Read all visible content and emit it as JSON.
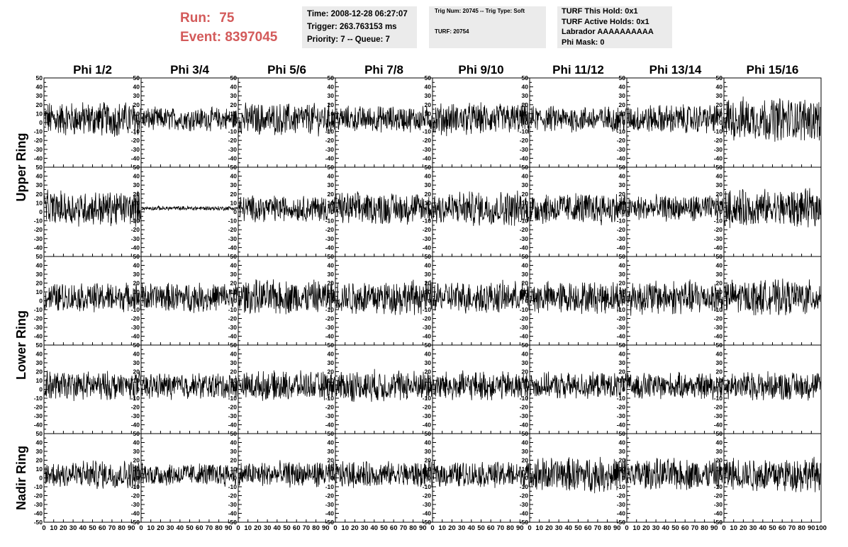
{
  "run": {
    "run_label": "Run:",
    "run_value": "75",
    "event_label": "Event:",
    "event_value": "8397045"
  },
  "info_time": {
    "time": "Time: 2008-12-28 06:27:07",
    "trigger": "Trigger: 263.763153 ms",
    "priority": "Priority: 7 -- Queue: 7"
  },
  "info_trig": {
    "trig": "Trig Num: 20745 -- Trig Type: Soft",
    "turf": "TURF: 20754"
  },
  "info_turf": {
    "hold": "TURF This Hold: 0x1",
    "active": "TURF Active Holds: 0x1",
    "labrador": "Labrador AAAAAAAAAA",
    "phimask": "Phi Mask: 0"
  },
  "colors": {
    "title_red": "#d35a5a",
    "box_gray": "#ebebeb",
    "trace": "#000000"
  },
  "chart_data": {
    "type": "line",
    "columns": [
      "Phi 1/2",
      "Phi 3/4",
      "Phi 5/6",
      "Phi 7/8",
      "Phi 9/10",
      "Phi 11/12",
      "Phi 13/14",
      "Phi 15/16"
    ],
    "row_labels": [
      "Upper Ring",
      "Lower Ring",
      "Nadir Ring"
    ],
    "panel_rows": 5,
    "ylim": [
      -50,
      50
    ],
    "y_ticks": [
      50,
      40,
      30,
      20,
      10,
      0,
      -10,
      -20,
      -30,
      -40
    ],
    "y_tick_bottom": "-50",
    "xlim": [
      0,
      100
    ],
    "x_ticks": [
      "0",
      "10",
      "20",
      "30",
      "40",
      "50",
      "60",
      "70",
      "80",
      "90",
      "100"
    ],
    "samples_per_trace": 260,
    "panels": [
      {
        "row": 0,
        "col": 0,
        "amplitude": 12
      },
      {
        "row": 0,
        "col": 1,
        "amplitude": 8
      },
      {
        "row": 0,
        "col": 2,
        "amplitude": 11
      },
      {
        "row": 0,
        "col": 3,
        "amplitude": 9
      },
      {
        "row": 0,
        "col": 4,
        "amplitude": 11
      },
      {
        "row": 0,
        "col": 5,
        "amplitude": 9
      },
      {
        "row": 0,
        "col": 6,
        "amplitude": 10
      },
      {
        "row": 0,
        "col": 7,
        "amplitude": 15
      },
      {
        "row": 1,
        "col": 0,
        "amplitude": 12
      },
      {
        "row": 1,
        "col": 1,
        "amplitude": 1.5
      },
      {
        "row": 1,
        "col": 2,
        "amplitude": 9
      },
      {
        "row": 1,
        "col": 3,
        "amplitude": 11
      },
      {
        "row": 1,
        "col": 4,
        "amplitude": 12
      },
      {
        "row": 1,
        "col": 5,
        "amplitude": 11
      },
      {
        "row": 1,
        "col": 6,
        "amplitude": 9
      },
      {
        "row": 1,
        "col": 7,
        "amplitude": 13
      },
      {
        "row": 2,
        "col": 0,
        "amplitude": 10
      },
      {
        "row": 2,
        "col": 1,
        "amplitude": 10
      },
      {
        "row": 2,
        "col": 2,
        "amplitude": 12
      },
      {
        "row": 2,
        "col": 3,
        "amplitude": 12
      },
      {
        "row": 2,
        "col": 4,
        "amplitude": 11
      },
      {
        "row": 2,
        "col": 5,
        "amplitude": 11
      },
      {
        "row": 2,
        "col": 6,
        "amplitude": 12
      },
      {
        "row": 2,
        "col": 7,
        "amplitude": 12
      },
      {
        "row": 3,
        "col": 0,
        "amplitude": 10
      },
      {
        "row": 3,
        "col": 1,
        "amplitude": 9
      },
      {
        "row": 3,
        "col": 2,
        "amplitude": 10
      },
      {
        "row": 3,
        "col": 3,
        "amplitude": 11
      },
      {
        "row": 3,
        "col": 4,
        "amplitude": 10
      },
      {
        "row": 3,
        "col": 5,
        "amplitude": 9
      },
      {
        "row": 3,
        "col": 6,
        "amplitude": 9
      },
      {
        "row": 3,
        "col": 7,
        "amplitude": 10
      },
      {
        "row": 4,
        "col": 0,
        "amplitude": 10
      },
      {
        "row": 4,
        "col": 1,
        "amplitude": 8
      },
      {
        "row": 4,
        "col": 2,
        "amplitude": 9
      },
      {
        "row": 4,
        "col": 3,
        "amplitude": 9
      },
      {
        "row": 4,
        "col": 4,
        "amplitude": 9
      },
      {
        "row": 4,
        "col": 5,
        "amplitude": 12
      },
      {
        "row": 4,
        "col": 6,
        "amplitude": 11
      },
      {
        "row": 4,
        "col": 7,
        "amplitude": 12
      }
    ]
  }
}
